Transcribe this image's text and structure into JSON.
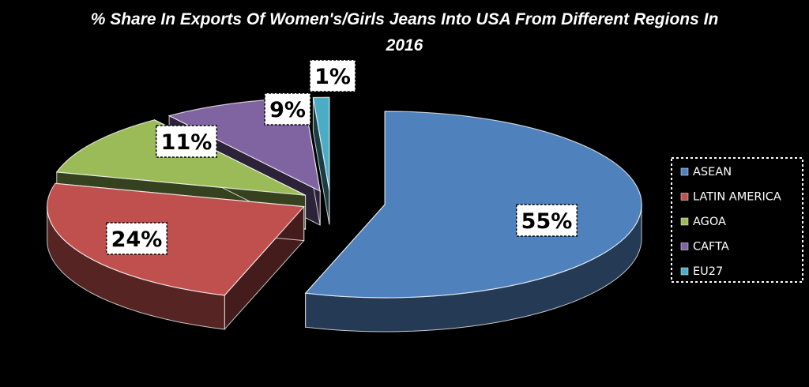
{
  "chart_data": {
    "type": "pie",
    "title_lines": [
      "% Share In Exports Of Women's/Girls Jeans Into USA From Different Regions In",
      "2016"
    ],
    "series": [
      {
        "name": "ASEAN",
        "value": 55,
        "label": "55%",
        "color": "#4f81bd"
      },
      {
        "name": "LATIN AMERICA",
        "value": 24,
        "label": "24%",
        "color": "#c0504d"
      },
      {
        "name": "AGOA",
        "value": 11,
        "label": "11%",
        "color": "#9bbb59"
      },
      {
        "name": "CAFTA",
        "value": 9,
        "label": "9%",
        "color": "#8064a2"
      },
      {
        "name": "EU27",
        "value": 1,
        "label": "1%",
        "color": "#4bacc6"
      }
    ],
    "exploded": true,
    "three_d": true,
    "legend_position": "right"
  }
}
